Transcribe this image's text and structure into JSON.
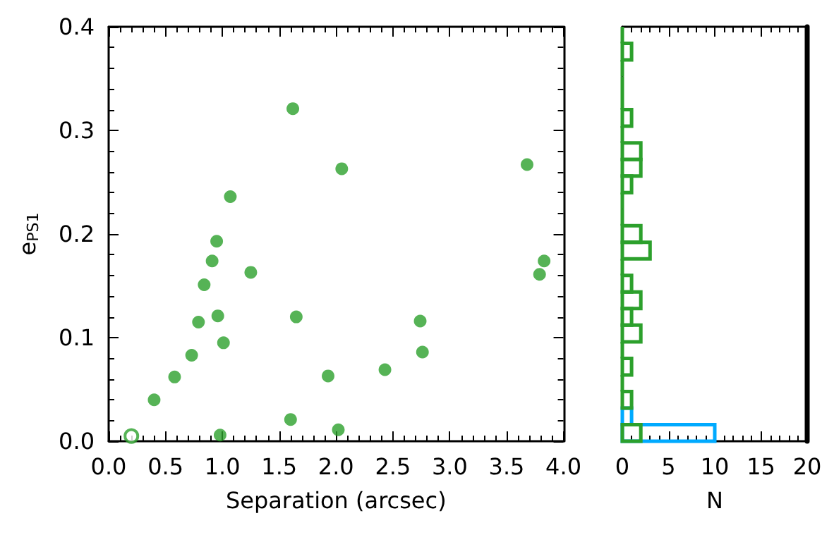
{
  "chart_data": [
    {
      "type": "scatter",
      "xlabel": "Separation (arcsec)",
      "ylabel": "e$_{PS1}$",
      "marker": "circle",
      "xlim": [
        0,
        4
      ],
      "ylim": [
        0,
        0.4
      ],
      "xticks": [
        {
          "value": 0,
          "label": "0.0"
        },
        {
          "value": 0.5,
          "label": "0.5"
        },
        {
          "value": 1,
          "label": "1.0"
        },
        {
          "value": 1.5,
          "label": "1.5"
        },
        {
          "value": 2,
          "label": "2.0"
        },
        {
          "value": 2.5,
          "label": "2.5"
        },
        {
          "value": 3,
          "label": "3.0"
        },
        {
          "value": 3.5,
          "label": "3.5"
        },
        {
          "value": 4,
          "label": "4.0"
        }
      ],
      "yticks": [
        {
          "value": 0,
          "label": "0.0"
        },
        {
          "value": 0.1,
          "label": "0.1"
        },
        {
          "value": 0.2,
          "label": "0.2"
        },
        {
          "value": 0.3,
          "label": "0.3"
        },
        {
          "value": 0.4,
          "label": "0.4"
        }
      ],
      "series": [
        {
          "color": "#2ca02c",
          "x": [
            0.4,
            0.58,
            0.73,
            0.79,
            0.84,
            0.91,
            0.95,
            0.96,
            0.98,
            1.01,
            1.07,
            1.25,
            1.62,
            1.6,
            1.65,
            1.93,
            2.02,
            2.05,
            2.43,
            2.74,
            2.76,
            3.68,
            3.79,
            3.83
          ],
          "values": [
            0.04,
            0.062,
            0.083,
            0.115,
            0.151,
            0.174,
            0.193,
            0.121,
            0.006,
            0.095,
            0.236,
            0.163,
            0.321,
            0.021,
            0.12,
            0.063,
            0.011,
            0.263,
            0.069,
            0.116,
            0.086,
            0.267,
            0.161,
            0.174
          ]
        },
        {
          "color": "#2ca02c",
          "x": [
            0.2
          ],
          "values": [
            0.005
          ]
        }
      ]
    },
    {
      "type": "bar",
      "orientation": "horizontal",
      "xlabel": "N",
      "tick_labels": "x",
      "xlim": [
        0,
        20
      ],
      "xticks": [
        0,
        5,
        10,
        15,
        20
      ],
      "categories": [
        null,
        null,
        null,
        null,
        null,
        null,
        null,
        null,
        null,
        null,
        null,
        null,
        null,
        null,
        null,
        null,
        null,
        null,
        null,
        null,
        null,
        null,
        null,
        null,
        null
      ],
      "series": [
        {
          "color": "#2ca02c",
          "values": [
            0,
            1,
            0,
            0,
            0,
            1,
            0,
            2,
            2,
            1,
            0,
            0,
            2,
            3,
            0,
            1,
            2,
            1,
            2,
            0,
            1,
            0,
            1,
            null,
            2
          ]
        },
        {
          "color": "#00aaff",
          "values": [
            null,
            null,
            null,
            null,
            null,
            null,
            null,
            null,
            null,
            null,
            null,
            null,
            null,
            null,
            null,
            null,
            null,
            null,
            null,
            null,
            null,
            null,
            null,
            1,
            10
          ]
        }
      ]
    }
  ]
}
